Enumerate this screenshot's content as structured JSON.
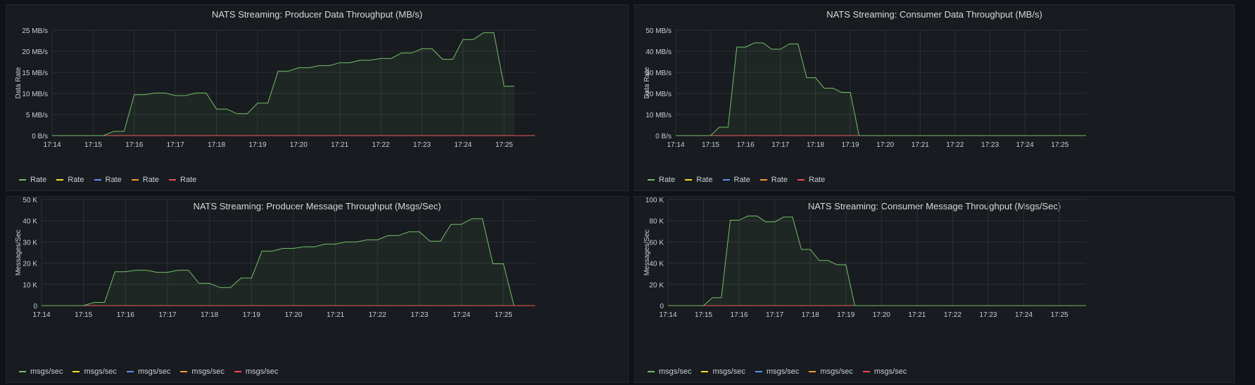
{
  "chart_data": [
    {
      "type": "area",
      "title": "NATS Streaming: Producer Data Throughput (MB/s)",
      "ylabel": "Data Rate",
      "y_unit": " MB/s",
      "ylim": [
        0,
        25
      ],
      "yticks": [
        0,
        5,
        10,
        15,
        20,
        25
      ],
      "ytick_labels": [
        "0 B/s",
        "5 MB/s",
        "10 MB/s",
        "15 MB/s",
        "20 MB/s",
        "25 MB/s"
      ],
      "xlim": [
        "17:14",
        "17:25:45"
      ],
      "xticks": [
        "17:14",
        "17:15",
        "17:16",
        "17:17",
        "17:18",
        "17:19",
        "17:20",
        "17:21",
        "17:22",
        "17:23",
        "17:24",
        "17:25"
      ],
      "grid": true,
      "legend_placement": "bottom-left",
      "series": [
        {
          "name": "Rate",
          "color": "#73bf69",
          "filled": true,
          "x": [
            "17:14:00",
            "17:15:15",
            "17:15:30",
            "17:15:45",
            "17:16:00",
            "17:16:15",
            "17:16:30",
            "17:16:45",
            "17:17:00",
            "17:17:15",
            "17:17:30",
            "17:17:45",
            "17:18:00",
            "17:18:15",
            "17:18:30",
            "17:18:45",
            "17:19:00",
            "17:19:15",
            "17:19:30",
            "17:19:45",
            "17:20:00",
            "17:20:15",
            "17:20:30",
            "17:20:45",
            "17:21:00",
            "17:21:15",
            "17:21:30",
            "17:21:45",
            "17:22:00",
            "17:22:15",
            "17:22:30",
            "17:22:45",
            "17:23:00",
            "17:23:15",
            "17:23:30",
            "17:23:45",
            "17:24:00",
            "17:24:15",
            "17:24:30",
            "17:24:45",
            "17:25:00",
            "17:25:15"
          ],
          "values": [
            0,
            0,
            1,
            1,
            9.7,
            9.7,
            10.1,
            10.1,
            9.5,
            9.5,
            10.1,
            10.1,
            6.3,
            6.3,
            5.2,
            5.2,
            7.7,
            7.7,
            15.3,
            15.3,
            16.1,
            16.1,
            16.6,
            16.6,
            17.3,
            17.3,
            17.9,
            17.9,
            18.3,
            18.3,
            19.6,
            19.6,
            20.6,
            20.6,
            18.1,
            18.1,
            22.8,
            22.8,
            24.4,
            24.4,
            11.7,
            11.7
          ]
        },
        {
          "name": "Rate",
          "color": "#fade2a",
          "values": [
            0
          ]
        },
        {
          "name": "Rate",
          "color": "#5794f2",
          "values": [
            0
          ]
        },
        {
          "name": "Rate",
          "color": "#ff9830",
          "values": [
            0
          ]
        },
        {
          "name": "Rate",
          "color": "#f2495c",
          "values": [
            0
          ]
        }
      ]
    },
    {
      "type": "area",
      "title": "NATS Streaming: Consumer Data Throughput (MB/s)",
      "ylabel": "Data Rate",
      "y_unit": " MB/s",
      "ylim": [
        0,
        50
      ],
      "yticks": [
        0,
        10,
        20,
        30,
        40,
        50
      ],
      "ytick_labels": [
        "0 B/s",
        "10 MB/s",
        "20 MB/s",
        "30 MB/s",
        "40 MB/s",
        "50 MB/s"
      ],
      "xlim": [
        "17:14",
        "17:25:45"
      ],
      "xticks": [
        "17:14",
        "17:15",
        "17:16",
        "17:17",
        "17:18",
        "17:19",
        "17:20",
        "17:21",
        "17:22",
        "17:23",
        "17:24",
        "17:25"
      ],
      "grid": true,
      "legend_placement": "bottom-left",
      "series": [
        {
          "name": "Rate",
          "color": "#73bf69",
          "filled": true,
          "x": [
            "17:14:00",
            "17:15:00",
            "17:15:15",
            "17:15:30",
            "17:15:45",
            "17:16:00",
            "17:16:15",
            "17:16:30",
            "17:16:45",
            "17:17:00",
            "17:17:15",
            "17:17:30",
            "17:17:45",
            "17:18:00",
            "17:18:15",
            "17:18:30",
            "17:18:45",
            "17:19:00",
            "17:19:15",
            "17:25:45"
          ],
          "values": [
            0,
            0,
            4,
            4,
            42,
            42,
            44,
            44,
            41,
            41,
            43.5,
            43.5,
            27.5,
            27.5,
            22.5,
            22.5,
            20.5,
            20.5,
            0,
            0
          ]
        },
        {
          "name": "Rate",
          "color": "#fade2a",
          "values": [
            0
          ]
        },
        {
          "name": "Rate",
          "color": "#5794f2",
          "values": [
            0
          ]
        },
        {
          "name": "Rate",
          "color": "#ff9830",
          "values": [
            0
          ]
        },
        {
          "name": "Rate",
          "color": "#f2495c",
          "values": [
            0
          ]
        }
      ]
    },
    {
      "type": "area",
      "title": "NATS Streaming: Producer Message Throughput (Msgs/Sec)",
      "ylabel": "Messages/Sec",
      "y_unit": " K",
      "ylim": [
        0,
        50
      ],
      "yticks": [
        0,
        10,
        20,
        30,
        40,
        50
      ],
      "ytick_labels": [
        "0",
        "10 K",
        "20 K",
        "30 K",
        "40 K",
        "50 K"
      ],
      "xlim": [
        "17:14",
        "17:25:45"
      ],
      "xticks": [
        "17:14",
        "17:15",
        "17:16",
        "17:17",
        "17:18",
        "17:19",
        "17:20",
        "17:21",
        "17:22",
        "17:23",
        "17:24",
        "17:25"
      ],
      "grid": true,
      "legend_placement": "bottom-left",
      "series": [
        {
          "name": "msgs/sec",
          "color": "#73bf69",
          "filled": true,
          "x": [
            "17:14:00",
            "17:15:00",
            "17:15:15",
            "17:15:30",
            "17:15:45",
            "17:16:00",
            "17:16:15",
            "17:16:30",
            "17:16:45",
            "17:17:00",
            "17:17:15",
            "17:17:30",
            "17:17:45",
            "17:18:00",
            "17:18:15",
            "17:18:30",
            "17:18:45",
            "17:19:00",
            "17:19:15",
            "17:19:30",
            "17:19:45",
            "17:20:00",
            "17:20:15",
            "17:20:30",
            "17:20:45",
            "17:21:00",
            "17:21:15",
            "17:21:30",
            "17:21:45",
            "17:22:00",
            "17:22:15",
            "17:22:30",
            "17:22:45",
            "17:23:00",
            "17:23:15",
            "17:23:30",
            "17:23:45",
            "17:24:00",
            "17:24:15",
            "17:24:30",
            "17:24:45",
            "17:25:00",
            "17:25:15"
          ],
          "values": [
            0,
            0,
            1.5,
            1.5,
            16,
            16,
            16.7,
            16.7,
            15.7,
            15.7,
            16.7,
            16.7,
            10.5,
            10.5,
            8.5,
            8.5,
            13,
            13,
            25.7,
            25.7,
            27,
            27,
            27.7,
            27.7,
            29,
            29,
            30,
            30,
            31,
            31,
            33,
            33,
            34.8,
            34.8,
            30.4,
            30.4,
            38.3,
            38.3,
            41,
            41,
            19.7,
            19.7,
            0
          ]
        },
        {
          "name": "msgs/sec",
          "color": "#fade2a",
          "values": [
            0
          ]
        },
        {
          "name": "msgs/sec",
          "color": "#5794f2",
          "values": [
            0
          ]
        },
        {
          "name": "msgs/sec",
          "color": "#ff9830",
          "values": [
            0
          ]
        },
        {
          "name": "msgs/sec",
          "color": "#f2495c",
          "values": [
            0
          ]
        }
      ]
    },
    {
      "type": "area",
      "title": "NATS Streaming: Consumer Message Throughput (Msgs/Sec)",
      "ylabel": "Messages/Sec",
      "y_unit": " K",
      "ylim": [
        0,
        100
      ],
      "yticks": [
        0,
        20,
        40,
        60,
        80,
        100
      ],
      "ytick_labels": [
        "0",
        "20 K",
        "40 K",
        "60 K",
        "80 K",
        "100 K"
      ],
      "xlim": [
        "17:14",
        "17:25:45"
      ],
      "xticks": [
        "17:14",
        "17:15",
        "17:16",
        "17:17",
        "17:18",
        "17:19",
        "17:20",
        "17:21",
        "17:22",
        "17:23",
        "17:24",
        "17:25"
      ],
      "grid": true,
      "legend_placement": "bottom-left",
      "series": [
        {
          "name": "msgs/sec",
          "color": "#73bf69",
          "filled": true,
          "x": [
            "17:14:00",
            "17:15:00",
            "17:15:15",
            "17:15:30",
            "17:15:45",
            "17:16:00",
            "17:16:15",
            "17:16:30",
            "17:16:45",
            "17:17:00",
            "17:17:15",
            "17:17:30",
            "17:17:45",
            "17:18:00",
            "17:18:15",
            "17:18:30",
            "17:18:45",
            "17:19:00",
            "17:19:15",
            "17:25:45"
          ],
          "values": [
            0,
            0,
            7.5,
            7.5,
            80.5,
            80.5,
            84.5,
            84.5,
            79,
            79,
            83.5,
            83.5,
            53,
            53,
            42.5,
            42.5,
            38.5,
            38.5,
            0,
            0
          ]
        },
        {
          "name": "msgs/sec",
          "color": "#fade2a",
          "values": [
            0
          ]
        },
        {
          "name": "msgs/sec",
          "color": "#5794f2",
          "values": [
            0
          ]
        },
        {
          "name": "msgs/sec",
          "color": "#ff9830",
          "values": [
            0
          ]
        },
        {
          "name": "msgs/sec",
          "color": "#f2495c",
          "values": [
            0
          ]
        }
      ]
    }
  ]
}
